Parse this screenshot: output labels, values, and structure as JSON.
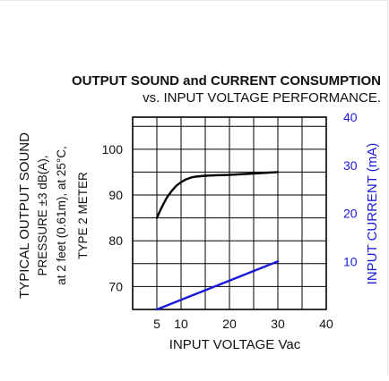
{
  "chart_data": {
    "type": "line",
    "title_line1": "OUTPUT SOUND and CURRENT CONSUMPTION",
    "title_line2": "vs. INPUT VOLTAGE PERFORMANCE.",
    "xlabel": "INPUT VOLTAGE Vac",
    "ylabel_left": [
      "TYPICAL OUTPUT SOUND",
      "PRESSURE ±3 dB(A),",
      "at 2 feet (0.61m), at 25°C,",
      "TYPE 2 METER"
    ],
    "ylabel_right": "INPUT CURRENT (mA)",
    "x_ticks": [
      5,
      10,
      20,
      30,
      40
    ],
    "xlim": [
      0,
      40
    ],
    "y_left_ticks": [
      70,
      80,
      90,
      100
    ],
    "ylim_left": [
      65,
      107
    ],
    "y_right_ticks": [
      10,
      20,
      30,
      40
    ],
    "ylim_right": [
      0,
      40
    ],
    "grid": true,
    "colors": {
      "sound": "#000000",
      "current": "#1a1adb",
      "right_axis": "#1a1adb",
      "grid": "#000000"
    },
    "series": [
      {
        "axis": "left",
        "x": [
          5,
          6,
          7,
          8,
          9,
          10,
          11,
          12,
          13,
          14,
          15,
          17,
          20,
          25,
          30
        ],
        "y": [
          85,
          87.3,
          89.3,
          90.8,
          92,
          92.8,
          93.4,
          93.8,
          94.0,
          94.1,
          94.2,
          94.3,
          94.4,
          94.7,
          95
        ]
      },
      {
        "axis": "right",
        "x": [
          5,
          30
        ],
        "y": [
          0,
          10
        ]
      }
    ]
  }
}
